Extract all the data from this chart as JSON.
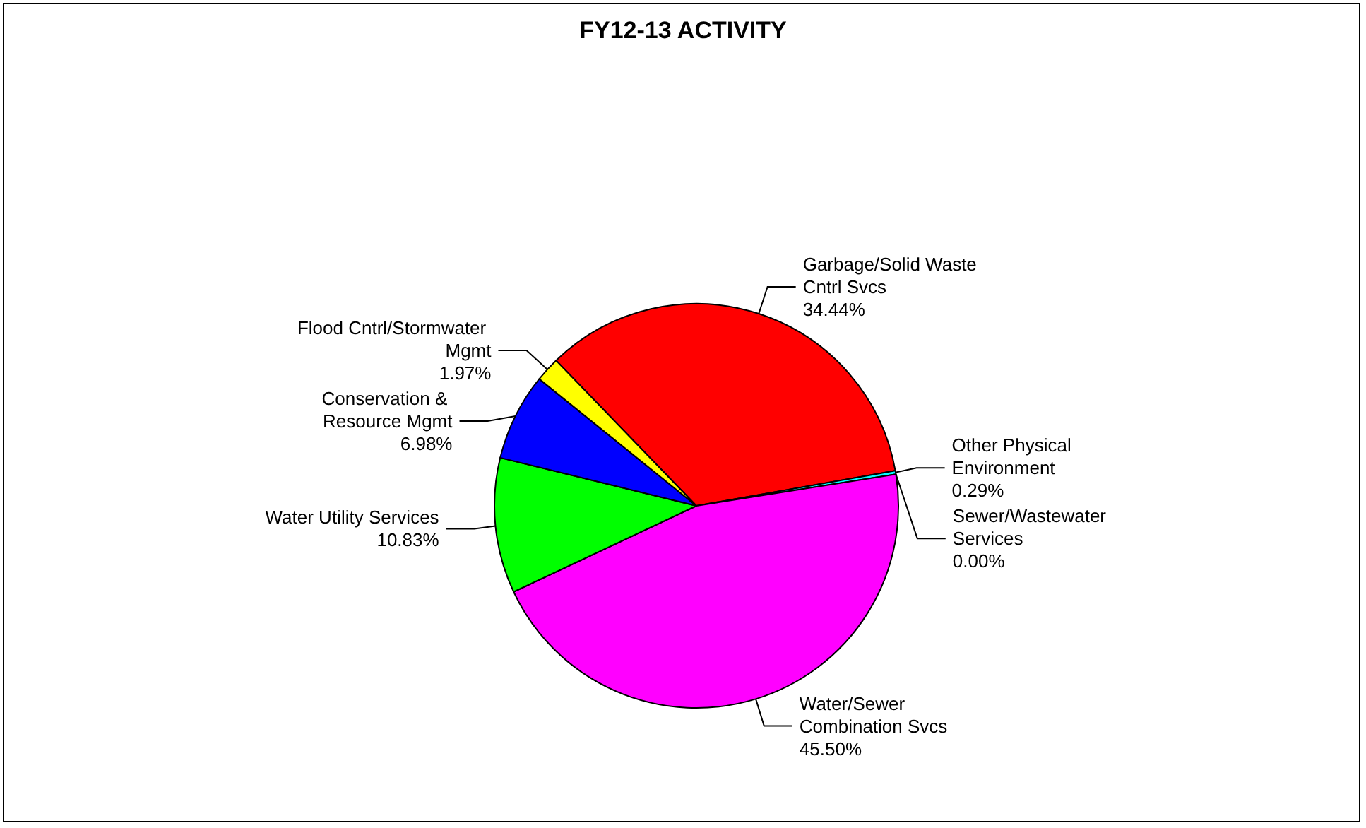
{
  "chart_data": {
    "type": "pie",
    "title": "FY12-13 ACTIVITY",
    "categories": [
      "Garbage/Solid Waste Cntrl Svcs",
      "Other Physical Environment",
      "Sewer/Wastewater Services",
      "Water/Sewer Combination Svcs",
      "Water Utility Services",
      "Conservation & Resource Mgmt",
      "Flood Cntrl/Stormwater Mgmt"
    ],
    "values": [
      34.44,
      0.29,
      0.0,
      45.5,
      10.83,
      6.98,
      1.97
    ],
    "colors": [
      "#ff0000",
      "#00ffff",
      "#800080",
      "#ff00ff",
      "#00ff00",
      "#0000ff",
      "#ffff00"
    ],
    "value_labels": [
      "34.44%",
      "0.29%",
      "0.00%",
      "45.50%",
      "10.83%",
      "6.98%",
      "1.97%"
    ],
    "legend": false
  }
}
